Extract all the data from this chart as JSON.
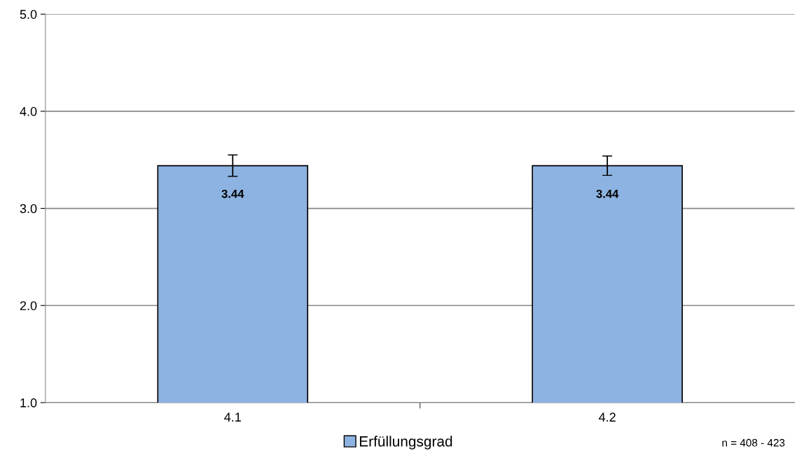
{
  "chart_data": {
    "type": "bar",
    "categories": [
      "4.1",
      "4.2"
    ],
    "series": [
      {
        "name": "Erfüllungsgrad",
        "color": "#8db3e2",
        "values": [
          3.44,
          3.44
        ],
        "errors": [
          0.11,
          0.1
        ]
      }
    ],
    "ylim": [
      1.0,
      5.0
    ],
    "yticks": [
      {
        "value": 1,
        "label": "1.0"
      },
      {
        "value": 2,
        "label": "2.0"
      },
      {
        "value": 3,
        "label": "3.0"
      },
      {
        "value": 4,
        "label": "4.0"
      },
      {
        "value": 5,
        "label": "5.0"
      }
    ],
    "grid": "y",
    "legend": "bottom",
    "data_labels": true,
    "annotations": [
      "n = 408 - 423"
    ]
  }
}
